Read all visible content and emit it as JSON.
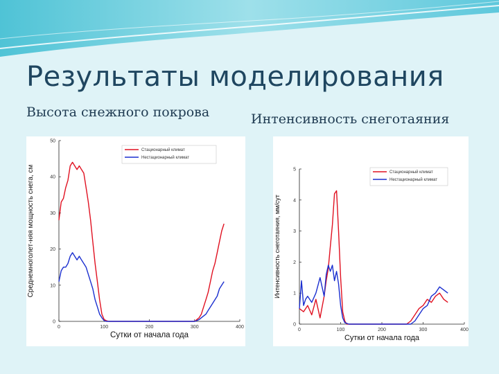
{
  "title": "Результаты моделирования",
  "left_heading": "Высота снежного покрова",
  "right_heading": "Интенсивность снеготаяния",
  "colors": {
    "series_stationary": "#e01020",
    "series_nonstationary": "#1a2ecf",
    "title": "#1f4660"
  },
  "chart_data": [
    {
      "type": "line",
      "ylabel": "Среднемноголет-няя мощность снега, см",
      "xlabel": "Сутки от начала года",
      "xlim": [
        0,
        400
      ],
      "ylim": [
        0,
        50
      ],
      "xticks": [
        0,
        100,
        200,
        300,
        400
      ],
      "yticks": [
        0,
        10,
        20,
        30,
        40,
        50
      ],
      "legend_position": "top-right",
      "grid": false,
      "series": [
        {
          "name": "Стационарный климат",
          "color": "#e01020",
          "x": [
            0,
            5,
            10,
            15,
            20,
            25,
            30,
            35,
            40,
            45,
            50,
            55,
            60,
            65,
            70,
            75,
            80,
            85,
            90,
            95,
            100,
            105,
            110,
            115,
            120,
            300,
            305,
            310,
            315,
            320,
            325,
            330,
            335,
            340,
            345,
            350,
            355,
            360,
            365
          ],
          "y": [
            28,
            33,
            34,
            37,
            39,
            43,
            44,
            43,
            42,
            43,
            42,
            41,
            37,
            33,
            28,
            22,
            16,
            11,
            6,
            2,
            0.5,
            0.2,
            0,
            0,
            0,
            0,
            0.5,
            1,
            2,
            4,
            6,
            8,
            11,
            14,
            16,
            19,
            22,
            25,
            27
          ]
        },
        {
          "name": "Нестационарный климат",
          "color": "#1a2ecf",
          "x": [
            0,
            5,
            10,
            15,
            20,
            25,
            30,
            35,
            40,
            45,
            50,
            55,
            60,
            65,
            70,
            75,
            80,
            85,
            90,
            95,
            100,
            105,
            110,
            115,
            120,
            300,
            305,
            310,
            315,
            320,
            325,
            330,
            335,
            340,
            345,
            350,
            355,
            360,
            365
          ],
          "y": [
            11,
            14,
            15,
            15,
            16,
            18,
            19,
            18,
            17,
            18,
            17,
            16,
            15,
            13,
            11,
            9,
            6,
            4,
            2,
            1,
            0.2,
            0,
            0,
            0,
            0,
            0,
            0.2,
            0.5,
            1,
            1.5,
            2,
            3,
            4,
            5,
            6,
            7,
            9,
            10,
            11
          ]
        }
      ]
    },
    {
      "type": "line",
      "ylabel": "Интенсивность снеготаяния, мм/сут",
      "xlabel": "Сутки от начала года",
      "xlim": [
        0,
        400
      ],
      "ylim": [
        0,
        5
      ],
      "xticks": [
        0,
        100,
        200,
        300,
        400
      ],
      "yticks": [
        0,
        1,
        2,
        3,
        4,
        5
      ],
      "legend_position": "top-right",
      "grid": false,
      "series": [
        {
          "name": "Стационарный климат",
          "color": "#e01020",
          "x": [
            0,
            10,
            20,
            30,
            40,
            50,
            60,
            65,
            70,
            75,
            80,
            85,
            90,
            95,
            100,
            105,
            110,
            115,
            120,
            130,
            250,
            260,
            270,
            280,
            290,
            300,
            310,
            320,
            330,
            340,
            350,
            360
          ],
          "y": [
            0.5,
            0.4,
            0.6,
            0.3,
            0.8,
            0.2,
            0.9,
            1.4,
            1.8,
            2.5,
            3.2,
            4.2,
            4.3,
            3.0,
            1.5,
            0.4,
            0.1,
            0,
            0,
            0,
            0,
            0,
            0.1,
            0.3,
            0.5,
            0.6,
            0.8,
            0.7,
            0.9,
            1.0,
            0.8,
            0.7
          ]
        },
        {
          "name": "Нестационарный климат",
          "color": "#1a2ecf",
          "x": [
            0,
            5,
            10,
            15,
            20,
            30,
            40,
            50,
            55,
            60,
            65,
            70,
            75,
            80,
            85,
            90,
            95,
            100,
            105,
            110,
            120,
            260,
            270,
            280,
            290,
            300,
            310,
            320,
            330,
            340,
            350,
            360
          ],
          "y": [
            0.5,
            1.4,
            0.6,
            0.8,
            0.9,
            0.7,
            1.0,
            1.5,
            1.2,
            0.9,
            1.6,
            1.9,
            1.7,
            1.9,
            1.4,
            1.7,
            1.3,
            0.6,
            0.2,
            0.05,
            0,
            0,
            0,
            0.1,
            0.3,
            0.5,
            0.6,
            0.9,
            1.0,
            1.2,
            1.1,
            1.0
          ]
        }
      ]
    }
  ]
}
